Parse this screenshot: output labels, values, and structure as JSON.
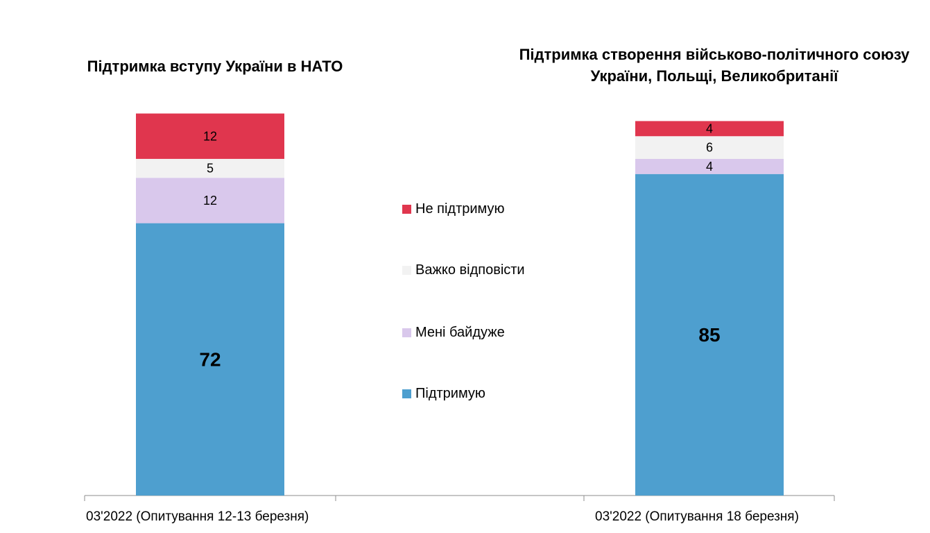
{
  "titles": {
    "left": "Підтримка вступу України в НАТО",
    "right": "Підтримка створення військово-політичного союзу України, Польщі, Великобританії"
  },
  "chart_data": {
    "type": "bar",
    "stacked": true,
    "orientation": "vertical",
    "categories": [
      "03'2022 (Опитування 12-13 березня)",
      "03'2022 (Опитування 18 березня)"
    ],
    "series": [
      {
        "name": "Підтримую",
        "color": "#4e9fcf",
        "values": [
          72,
          85
        ]
      },
      {
        "name": "Мені байдуже",
        "color": "#d9c8ec",
        "values": [
          12,
          4
        ]
      },
      {
        "name": "Важко відповісти",
        "color": "#f2f2f2",
        "values": [
          5,
          6
        ]
      },
      {
        "name": "Не підтримую",
        "color": "#e0364e",
        "values": [
          12,
          4
        ]
      }
    ],
    "ylim": [
      0,
      101
    ],
    "legend_position": "center",
    "grid": false
  }
}
